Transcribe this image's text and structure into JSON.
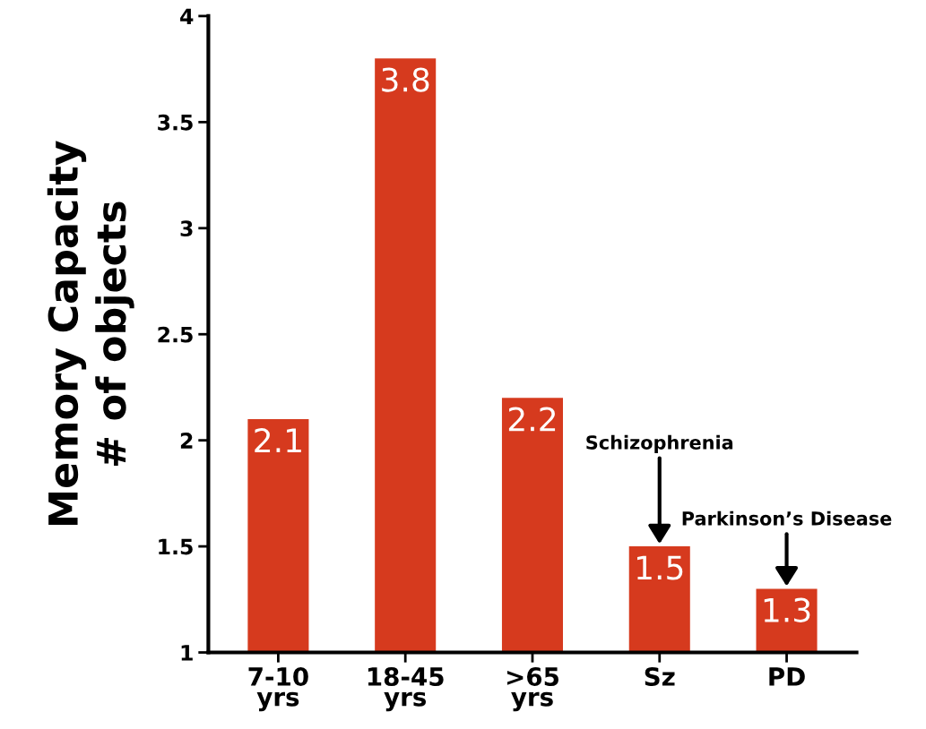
{
  "chart_data": {
    "type": "bar",
    "ylabel": "Memory Capacity\n# of objects",
    "categories": [
      "7-10\nyrs",
      "18-45\nyrs",
      ">65\nyrs",
      "Sz",
      "PD"
    ],
    "values": [
      2.1,
      3.8,
      2.2,
      1.5,
      1.3
    ],
    "color": "#d63a1e",
    "ylim": [
      1,
      4
    ],
    "yticks": [
      1,
      1.5,
      2,
      2.5,
      3,
      3.5,
      4
    ],
    "grid": false,
    "data_labels": true,
    "annotations": [
      {
        "text": "Schizophrenia",
        "x": "Sz",
        "y": 1.5
      },
      {
        "text": "Parkinson’s Disease",
        "x": "PD",
        "y": 1.3
      }
    ]
  }
}
